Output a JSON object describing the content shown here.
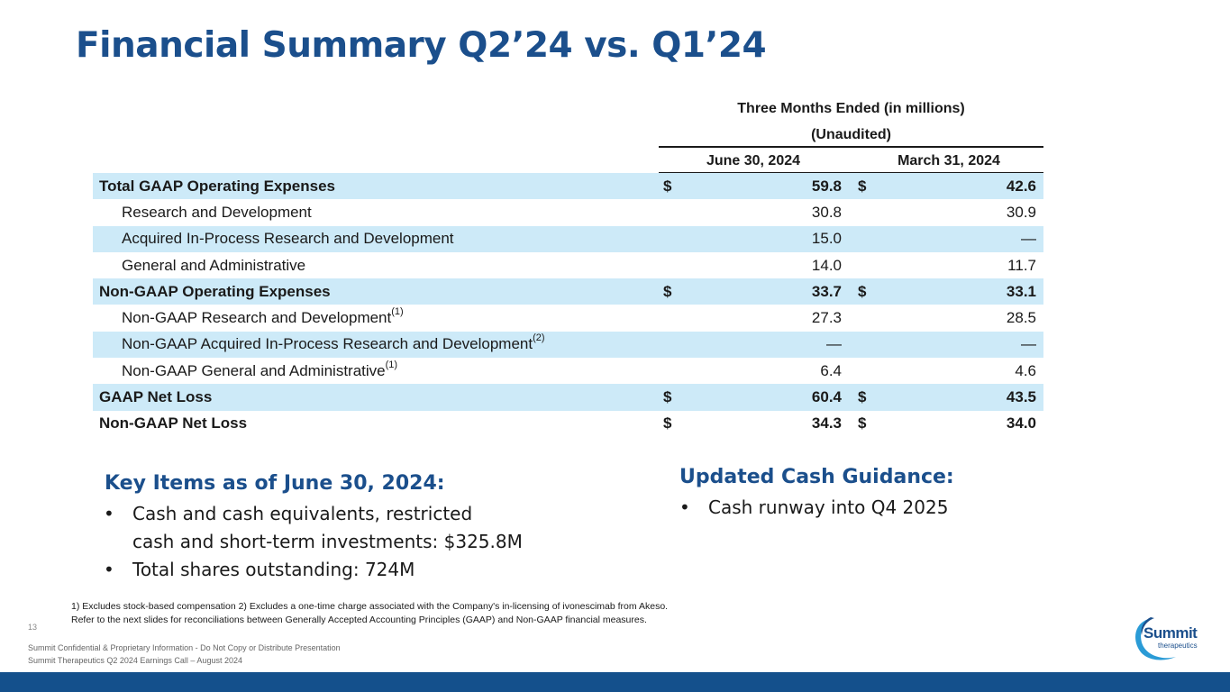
{
  "title": "Financial Summary Q2’24 vs. Q1’24",
  "table": {
    "header_group_line1": "Three Months Ended (in millions)",
    "header_group_line2": "(Unaudited)",
    "col1": "June 30, 2024",
    "col2": "March 31, 2024",
    "rows": [
      {
        "label": "Total GAAP Operating Expenses",
        "sup": "",
        "cur1": "$",
        "v1": "59.8",
        "cur2": "$",
        "v2": "42.6"
      },
      {
        "label": "Research and Development",
        "sup": "",
        "cur1": "",
        "v1": "30.8",
        "cur2": "",
        "v2": "30.9"
      },
      {
        "label": "Acquired In-Process Research and Development",
        "sup": "",
        "cur1": "",
        "v1": "15.0",
        "cur2": "",
        "v2": "—"
      },
      {
        "label": "General and Administrative",
        "sup": "",
        "cur1": "",
        "v1": "14.0",
        "cur2": "",
        "v2": "11.7"
      },
      {
        "label": "Non-GAAP Operating Expenses",
        "sup": "",
        "cur1": "$",
        "v1": "33.7",
        "cur2": "$",
        "v2": "33.1"
      },
      {
        "label": "Non-GAAP Research and Development",
        "sup": "(1)",
        "cur1": "",
        "v1": "27.3",
        "cur2": "",
        "v2": "28.5"
      },
      {
        "label": "Non-GAAP Acquired In-Process Research and Development",
        "sup": "(2)",
        "cur1": "",
        "v1": "—",
        "cur2": "",
        "v2": "—"
      },
      {
        "label": "Non-GAAP General and Administrative",
        "sup": "(1)",
        "cur1": "",
        "v1": "6.4",
        "cur2": "",
        "v2": "4.6"
      },
      {
        "label": "GAAP Net Loss",
        "sup": "",
        "cur1": "$",
        "v1": "60.4",
        "cur2": "$",
        "v2": "43.5"
      },
      {
        "label": "Non-GAAP Net Loss",
        "sup": "",
        "cur1": "$",
        "v1": "34.3",
        "cur2": "$",
        "v2": "34.0"
      }
    ]
  },
  "key_items": {
    "heading": "Key Items as of June 30, 2024:",
    "bullet1_line1": "Cash and cash equivalents, restricted",
    "bullet1_line2": "cash and short-term investments:  $325.8M",
    "bullet2": "Total shares outstanding:  724M"
  },
  "cash_guidance": {
    "heading": "Updated Cash Guidance:",
    "bullet1": "Cash runway into Q4 2025"
  },
  "footnotes": {
    "line1": "1) Excludes stock-based compensation 2) Excludes a one-time charge associated with the Company's in-licensing of ivonescimab from Akeso.",
    "line2": "Refer to the next slides for reconciliations between Generally Accepted Accounting Principles (GAAP) and Non-GAAP financial measures."
  },
  "page_number": "13",
  "confidential": "Summit Confidential & Proprietary Information - Do Not Copy or Distribute Presentation",
  "event": "Summit Therapeutics Q2 2024 Earnings Call – August 2024",
  "logo": {
    "name": "Summit",
    "sub": "therapeutics"
  },
  "colors": {
    "brand": "#1b4f8c",
    "shade": "#cdeaf8",
    "bar": "#14508c"
  }
}
